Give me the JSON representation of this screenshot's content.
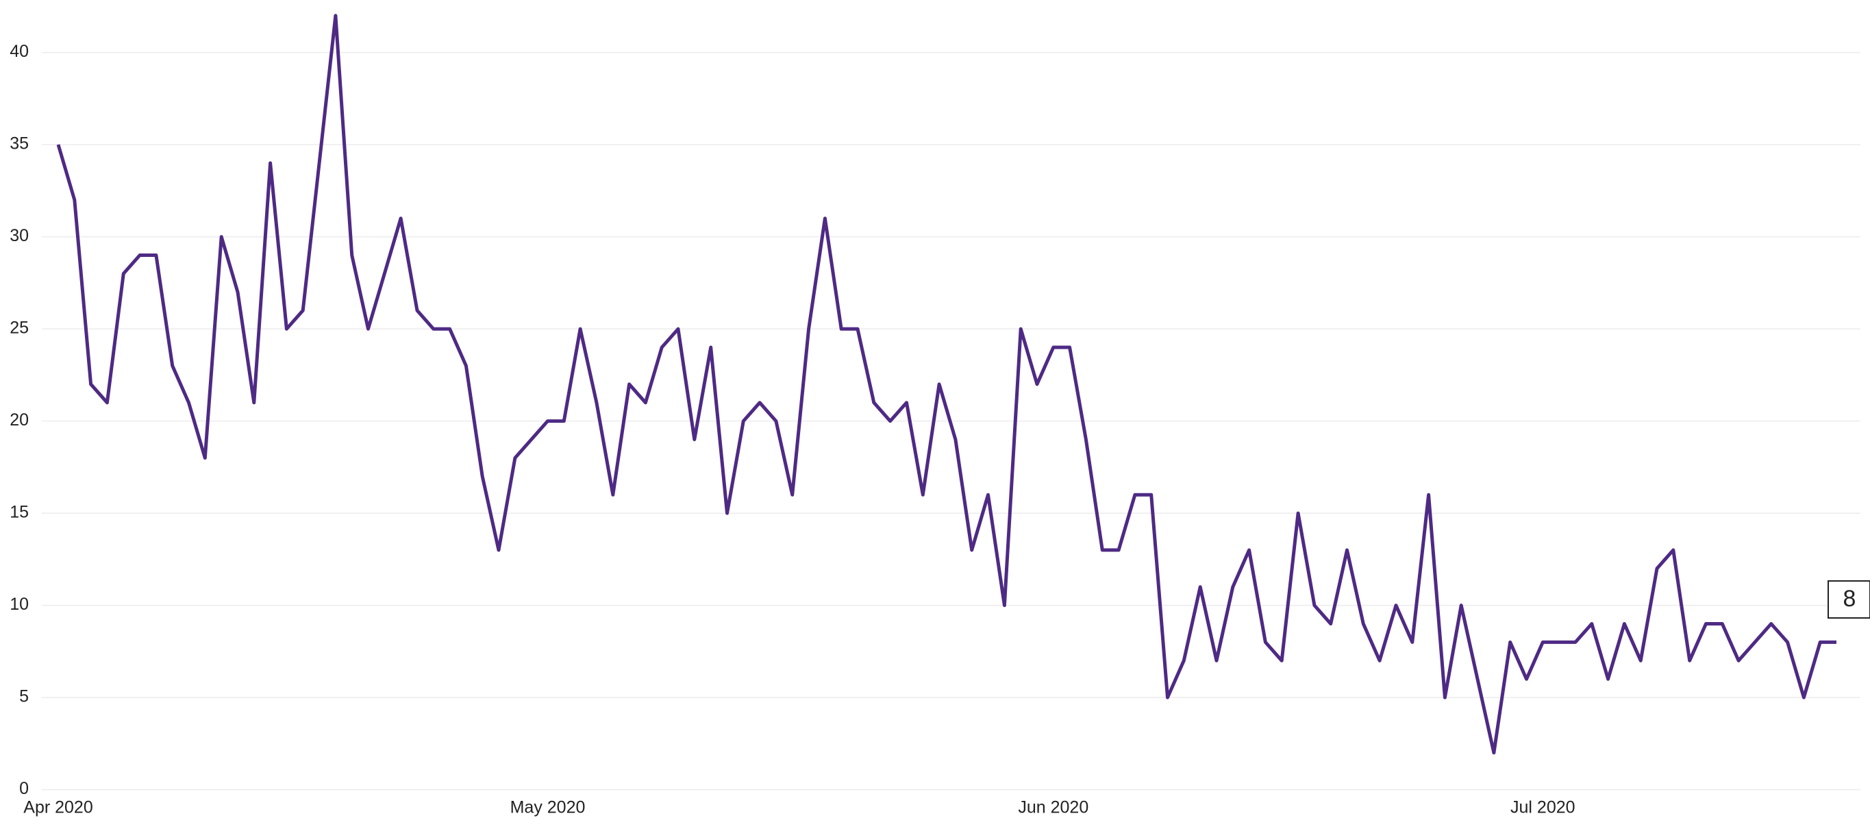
{
  "chart_data": {
    "type": "line",
    "x": [
      "2020-04-01",
      "2020-04-02",
      "2020-04-03",
      "2020-04-04",
      "2020-04-05",
      "2020-04-06",
      "2020-04-07",
      "2020-04-08",
      "2020-04-09",
      "2020-04-10",
      "2020-04-11",
      "2020-04-12",
      "2020-04-13",
      "2020-04-14",
      "2020-04-15",
      "2020-04-16",
      "2020-04-17",
      "2020-04-18",
      "2020-04-19",
      "2020-04-20",
      "2020-04-21",
      "2020-04-22",
      "2020-04-23",
      "2020-04-24",
      "2020-04-25",
      "2020-04-26",
      "2020-04-27",
      "2020-04-28",
      "2020-04-29",
      "2020-04-30",
      "2020-05-01",
      "2020-05-02",
      "2020-05-03",
      "2020-05-04",
      "2020-05-05",
      "2020-05-06",
      "2020-05-07",
      "2020-05-08",
      "2020-05-09",
      "2020-05-10",
      "2020-05-11",
      "2020-05-12",
      "2020-05-13",
      "2020-05-14",
      "2020-05-15",
      "2020-05-16",
      "2020-05-17",
      "2020-05-18",
      "2020-05-19",
      "2020-05-20",
      "2020-05-21",
      "2020-05-22",
      "2020-05-23",
      "2020-05-24",
      "2020-05-25",
      "2020-05-26",
      "2020-05-27",
      "2020-05-28",
      "2020-05-29",
      "2020-05-30",
      "2020-05-31",
      "2020-06-01",
      "2020-06-02",
      "2020-06-03",
      "2020-06-04",
      "2020-06-05",
      "2020-06-06",
      "2020-06-07",
      "2020-06-08",
      "2020-06-09",
      "2020-06-10",
      "2020-06-11",
      "2020-06-12",
      "2020-06-13",
      "2020-06-14",
      "2020-06-15",
      "2020-06-16",
      "2020-06-17",
      "2020-06-18",
      "2020-06-19",
      "2020-06-20",
      "2020-06-21",
      "2020-06-22",
      "2020-06-23",
      "2020-06-24",
      "2020-06-25",
      "2020-06-26",
      "2020-06-27",
      "2020-06-28",
      "2020-06-29",
      "2020-06-30",
      "2020-07-01",
      "2020-07-02",
      "2020-07-03",
      "2020-07-04",
      "2020-07-05",
      "2020-07-06",
      "2020-07-07",
      "2020-07-08",
      "2020-07-09",
      "2020-07-10",
      "2020-07-11",
      "2020-07-12",
      "2020-07-13",
      "2020-07-14",
      "2020-07-15",
      "2020-07-16",
      "2020-07-17",
      "2020-07-18",
      "2020-07-19"
    ],
    "series": [
      {
        "color": "#4e2a84",
        "values": [
          35,
          32,
          22,
          21,
          28,
          29,
          29,
          23,
          21,
          18,
          30,
          27,
          21,
          34,
          25,
          26,
          34,
          42,
          29,
          25,
          28,
          31,
          26,
          25,
          25,
          23,
          17,
          13,
          18,
          19,
          20,
          20,
          25,
          21,
          16,
          22,
          21,
          24,
          25,
          19,
          24,
          15,
          20,
          21,
          20,
          16,
          25,
          31,
          25,
          25,
          21,
          20,
          21,
          16,
          22,
          19,
          13,
          16,
          10,
          25,
          22,
          24,
          24,
          19,
          13,
          13,
          16,
          16,
          5,
          7,
          11,
          7,
          11,
          13,
          8,
          7,
          15,
          10,
          9,
          13,
          9,
          7,
          10,
          8,
          16,
          5,
          10,
          6,
          2,
          8,
          6,
          8,
          8,
          8,
          9,
          6,
          9,
          7,
          12,
          13,
          7,
          9,
          9,
          7,
          8,
          9,
          8,
          5,
          8,
          8
        ]
      }
    ],
    "xlim": [
      "2020-04-01",
      "2020-07-19"
    ],
    "xticks": [
      {
        "value": "2020-04-01",
        "label": "Apr 2020"
      },
      {
        "value": "2020-05-01",
        "label": "May 2020"
      },
      {
        "value": "2020-06-01",
        "label": "Jun 2020"
      },
      {
        "value": "2020-07-01",
        "label": "Jul 2020"
      }
    ],
    "ylim": [
      0,
      42
    ],
    "yticks": [
      0,
      5,
      10,
      15,
      20,
      25,
      30,
      35,
      40
    ],
    "grid": true
  }
}
